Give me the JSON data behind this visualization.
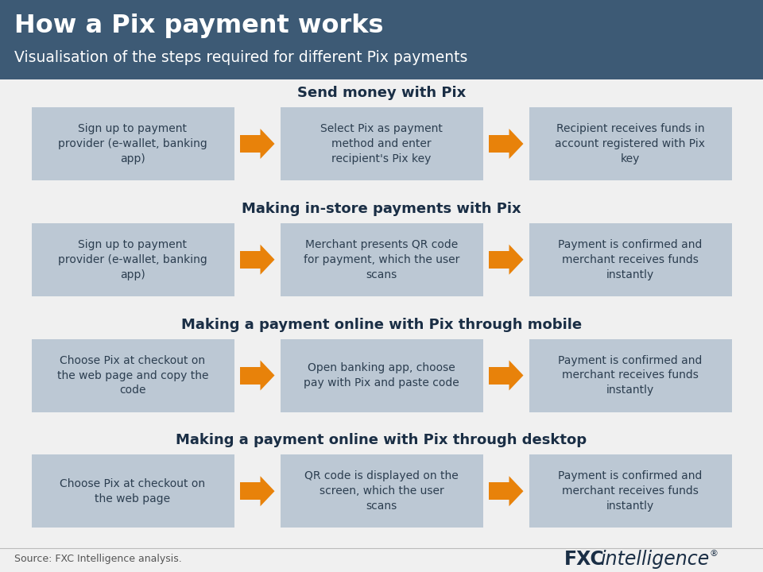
{
  "title": "How a Pix payment works",
  "subtitle": "Visualisation of the steps required for different Pix payments",
  "header_bg": "#3d5a75",
  "body_bg": "#f0f0f0",
  "box_bg": "#bcc8d4",
  "arrow_color": "#e8820a",
  "section_title_color": "#1a2e45",
  "box_text_color": "#2c3e50",
  "source_text": "Source: FXC Intelligence analysis.",
  "sections": [
    {
      "title": "Send money with Pix",
      "steps": [
        "Sign up to payment\nprovider (e-wallet, banking\napp)",
        "Select Pix as payment\nmethod and enter\nrecipient's Pix key",
        "Recipient receives funds in\naccount registered with Pix\nkey"
      ]
    },
    {
      "title": "Making in-store payments with Pix",
      "steps": [
        "Sign up to payment\nprovider (e-wallet, banking\napp)",
        "Merchant presents QR code\nfor payment, which the user\nscans",
        "Payment is confirmed and\nmerchant receives funds\ninstantly"
      ]
    },
    {
      "title": "Making a payment online with Pix through mobile",
      "steps": [
        "Choose Pix at checkout on\nthe web page and copy the\ncode",
        "Open banking app, choose\npay with Pix and paste code",
        "Payment is confirmed and\nmerchant receives funds\ninstantly"
      ]
    },
    {
      "title": "Making a payment online with Pix through desktop",
      "steps": [
        "Choose Pix at checkout on\nthe web page",
        "QR code is displayed on the\nscreen, which the user\nscans",
        "Payment is confirmed and\nmerchant receives funds\ninstantly"
      ]
    }
  ]
}
